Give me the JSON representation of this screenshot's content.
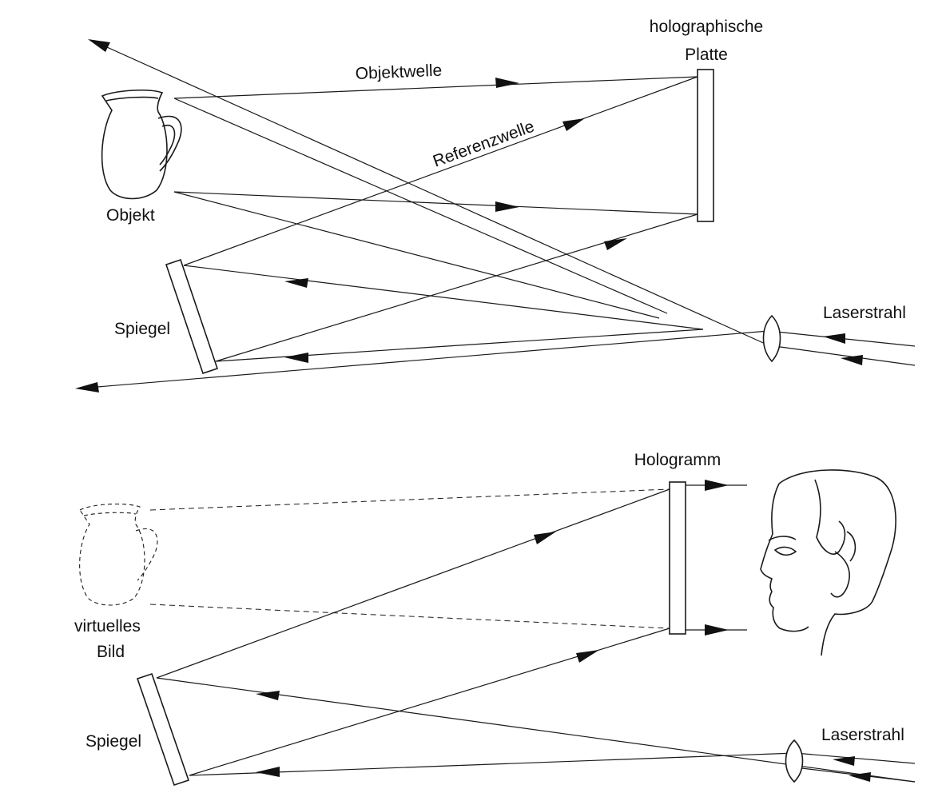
{
  "top_setup": {
    "labels": {
      "plate_line1": "holographische",
      "plate_line2": "Platte",
      "object_wave": "Objektwelle",
      "reference_wave": "Referenzwelle",
      "object": "Objekt",
      "mirror": "Spiegel",
      "laser": "Laserstrahl"
    }
  },
  "bottom_setup": {
    "labels": {
      "hologram": "Hologramm",
      "virtual_image_line1": "virtuelles",
      "virtual_image_line2": "Bild",
      "mirror": "Spiegel",
      "laser": "Laserstrahl"
    }
  },
  "colors": {
    "ink": "#111111",
    "background": "#ffffff"
  }
}
